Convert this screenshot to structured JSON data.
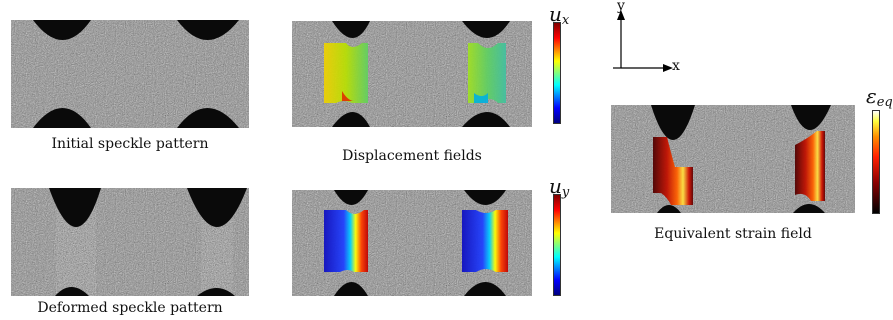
{
  "captions": {
    "initial": "Initial speckle pattern",
    "deformed": "Deformed speckle pattern",
    "displacement": "Displacement fields",
    "strain": "Equivalent strain field"
  },
  "axes": {
    "y": "y",
    "x": "x"
  },
  "colorbars": {
    "ux": {
      "symbol": "u",
      "subscript": "x"
    },
    "uy": {
      "symbol": "u",
      "subscript": "y"
    },
    "eq": {
      "symbol": "ε",
      "subscript": "eq"
    }
  },
  "colors": {
    "speckle_gray": "#8a8a8a",
    "notch": "#0a0a0a",
    "jet": [
      "#00007f",
      "#0000ff",
      "#00ffff",
      "#ffff00",
      "#ff0000",
      "#7f0000"
    ],
    "hot": [
      "#000000",
      "#8b0000",
      "#ff2000",
      "#ff9000",
      "#ffff40",
      "#ffffff"
    ]
  }
}
